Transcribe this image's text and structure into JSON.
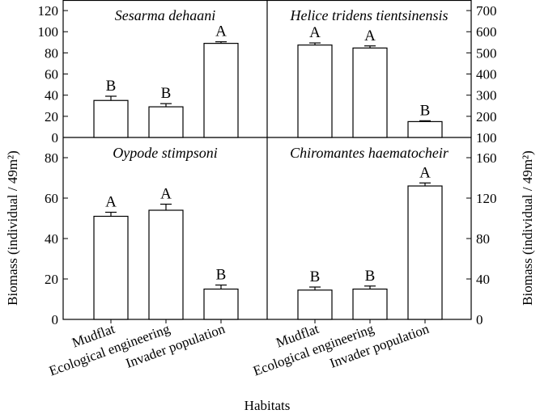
{
  "chart_data": {
    "type": "bar",
    "layout": "2x2 panels, shared x categories per column",
    "xlabel": "Habitats",
    "ylabel_left": "Biomass (individual / 49m²)",
    "ylabel_right": "Biomass (individual / 49m²)",
    "categories": [
      "Mudflat",
      "Ecological engineering",
      "Invader population"
    ],
    "grid": false,
    "panels": [
      {
        "title": "Sesarma dehaani",
        "position": "top-left",
        "y_axis_side": "left",
        "ylim": [
          0,
          130
        ],
        "ticks": [
          0,
          20,
          40,
          60,
          80,
          100,
          120
        ],
        "values": [
          35,
          29,
          89
        ],
        "errors": [
          4,
          3,
          1.5
        ],
        "letters": [
          "B",
          "B",
          "A"
        ]
      },
      {
        "title": "Helice tridens tientsinensis",
        "position": "top-right",
        "y_axis_side": "right",
        "ylim": [
          100,
          750
        ],
        "ticks": [
          100,
          200,
          300,
          400,
          500,
          600,
          700
        ],
        "values": [
          537,
          523,
          175
        ],
        "errors": [
          10,
          10,
          4
        ],
        "letters": [
          "A",
          "A",
          "B"
        ]
      },
      {
        "title": "Oypode stimpsoni",
        "position": "bottom-left",
        "y_axis_side": "left",
        "ylim": [
          0,
          90
        ],
        "ticks": [
          0,
          20,
          40,
          60,
          80
        ],
        "values": [
          51,
          54,
          15
        ],
        "errors": [
          2,
          3,
          2
        ],
        "letters": [
          "A",
          "A",
          "B"
        ]
      },
      {
        "title": "Chiromantes haematocheir",
        "position": "bottom-right",
        "y_axis_side": "right",
        "ylim": [
          0,
          180
        ],
        "ticks": [
          0,
          40,
          80,
          120,
          160
        ],
        "values": [
          29,
          30,
          132
        ],
        "errors": [
          3,
          3,
          3
        ],
        "letters": [
          "B",
          "B",
          "A"
        ]
      }
    ]
  }
}
